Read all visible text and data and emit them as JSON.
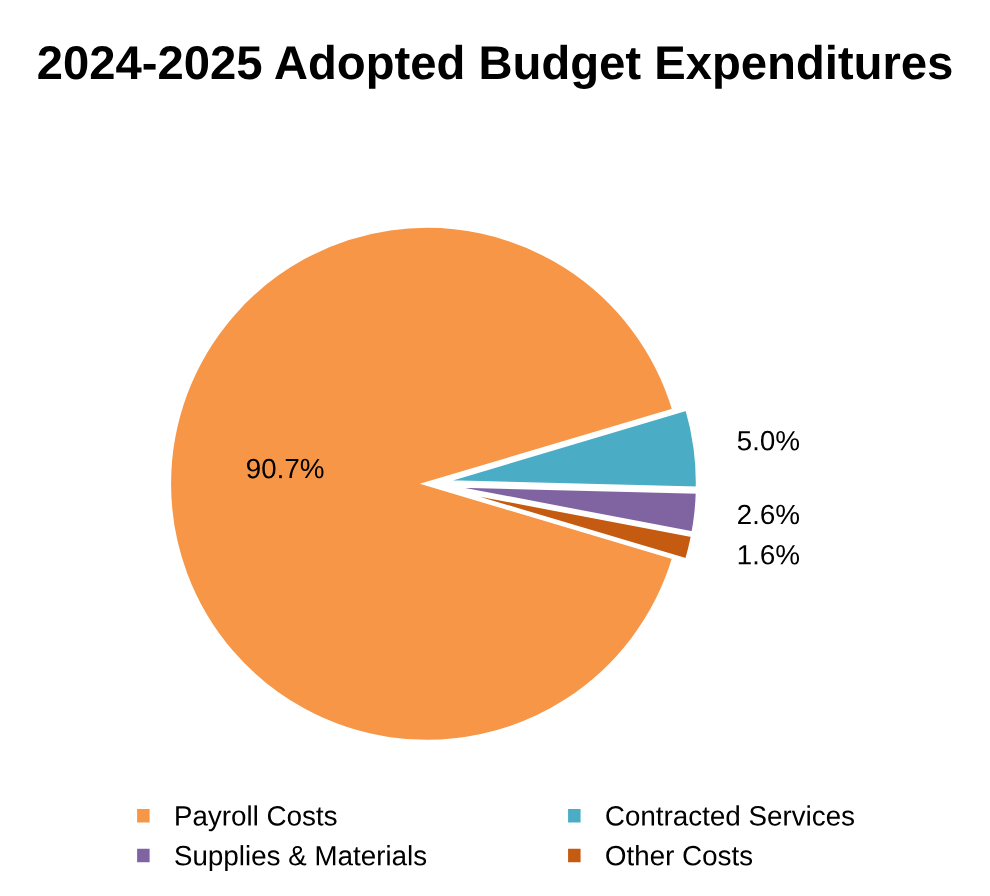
{
  "chart_data": {
    "type": "pie",
    "title": "2024-2025 Adopted Budget Expenditures",
    "categories": [
      "Payroll Costs",
      "Contracted Services",
      "Supplies & Materials",
      "Other Costs"
    ],
    "values": [
      90.7,
      5.0,
      2.6,
      1.6
    ],
    "colors": [
      "#f79646",
      "#4bacc6",
      "#8064a2",
      "#c55a11"
    ],
    "value_labels": [
      "90.7%",
      "5.0%",
      "2.6%",
      "1.6%"
    ],
    "legend": "bottom"
  }
}
